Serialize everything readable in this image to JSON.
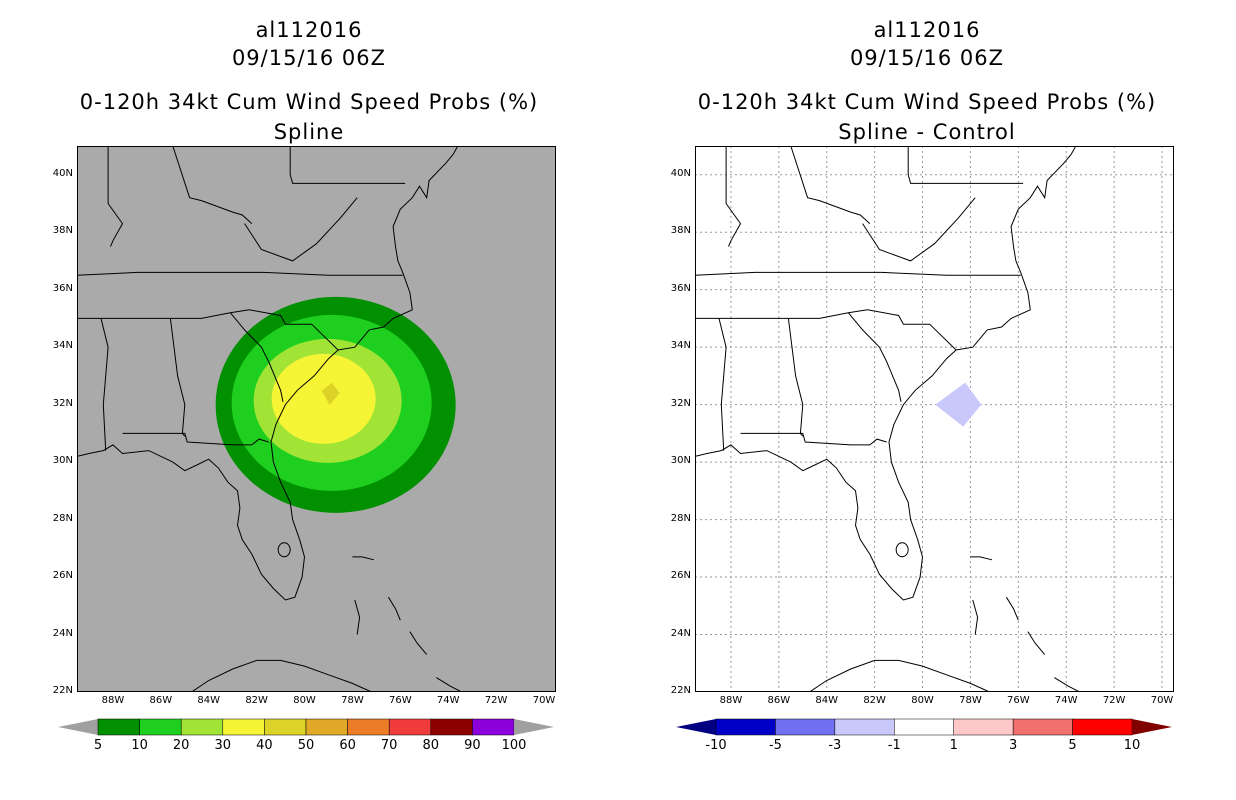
{
  "panels": [
    {
      "storm_id": "al112016",
      "datetime": "09/15/16 06Z",
      "product": "0-120h 34kt Cum Wind Speed Probs (%)",
      "subtitle": "Spline",
      "background_color": "#aaaaaa",
      "colorbar": {
        "colors": [
          "#009000",
          "#1fcf1f",
          "#a2e436",
          "#f5f536",
          "#dcd228",
          "#e0aa28",
          "#ec7d26",
          "#f03c3c",
          "#8c0000",
          "#8c00dc"
        ],
        "labels": [
          "5",
          "10",
          "20",
          "30",
          "40",
          "50",
          "60",
          "70",
          "80",
          "90",
          "100"
        ],
        "end_arrow_color": "#a0a0a0"
      }
    },
    {
      "storm_id": "al112016",
      "datetime": "09/15/16 06Z",
      "product": "0-120h 34kt Cum Wind Speed Probs (%)",
      "subtitle": "Spline - Control",
      "background_color": "#ffffff",
      "colorbar": {
        "colors": [
          "#0000c8",
          "#7070f0",
          "#c8c8fa",
          "#ffffff",
          "#ffc8c8",
          "#f07070",
          "#ff0000"
        ],
        "labels": [
          "-10",
          "-5",
          "-3",
          "-1",
          "1",
          "3",
          "5",
          "10"
        ],
        "left_arrow_color": "#000080",
        "right_arrow_color": "#800000"
      }
    }
  ],
  "axes": {
    "lat_labels": [
      "40N",
      "38N",
      "36N",
      "34N",
      "32N",
      "30N",
      "28N",
      "26N",
      "24N",
      "22N"
    ],
    "lon_labels": [
      "88W",
      "86W",
      "84W",
      "82W",
      "80W",
      "78W",
      "76W",
      "74W",
      "72W",
      "70W"
    ]
  },
  "probability_contours": [
    {
      "threshold": 5,
      "color": "#009000"
    },
    {
      "threshold": 10,
      "color": "#1fcf1f"
    },
    {
      "threshold": 20,
      "color": "#a2e436"
    },
    {
      "threshold": 30,
      "color": "#f5f536"
    },
    {
      "threshold": 40,
      "color": "#dcd228"
    }
  ],
  "difference_area": {
    "value_range": "-3 to -1",
    "color": "#c8c8fa"
  }
}
